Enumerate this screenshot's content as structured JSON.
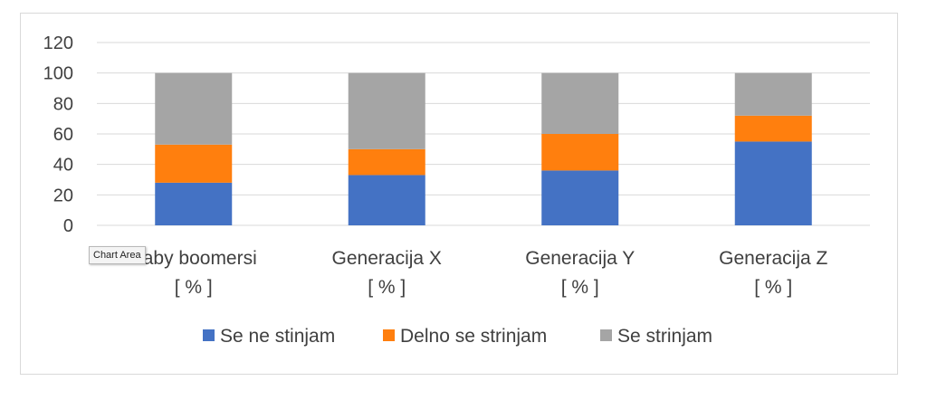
{
  "colors": {
    "series_1": "#4472C4",
    "series_2": "#FF7F0E",
    "series_3": "#A5A5A5",
    "grid": "#D9D9D9",
    "text": "#404040"
  },
  "tooltip": {
    "label": "Chart Area"
  },
  "chart_data": {
    "type": "bar",
    "stacked": true,
    "title": "",
    "xlabel": "",
    "ylabel": "",
    "ylim": [
      0,
      120
    ],
    "yticks": [
      0,
      20,
      40,
      60,
      80,
      100,
      120
    ],
    "grid": true,
    "legend_position": "bottom",
    "categories": [
      [
        "Baby boomersi",
        "[ % ]"
      ],
      [
        "Generacija X",
        "[ % ]"
      ],
      [
        "Generacija Y",
        "[ % ]"
      ],
      [
        "Generacija Z",
        "[ % ]"
      ]
    ],
    "series": [
      {
        "name": "Se ne stinjam",
        "values": [
          28,
          33,
          36,
          55
        ]
      },
      {
        "name": "Delno se strinjam",
        "values": [
          25,
          17,
          24,
          17
        ]
      },
      {
        "name": "Se strinjam",
        "values": [
          47,
          50,
          40,
          28
        ]
      }
    ]
  }
}
